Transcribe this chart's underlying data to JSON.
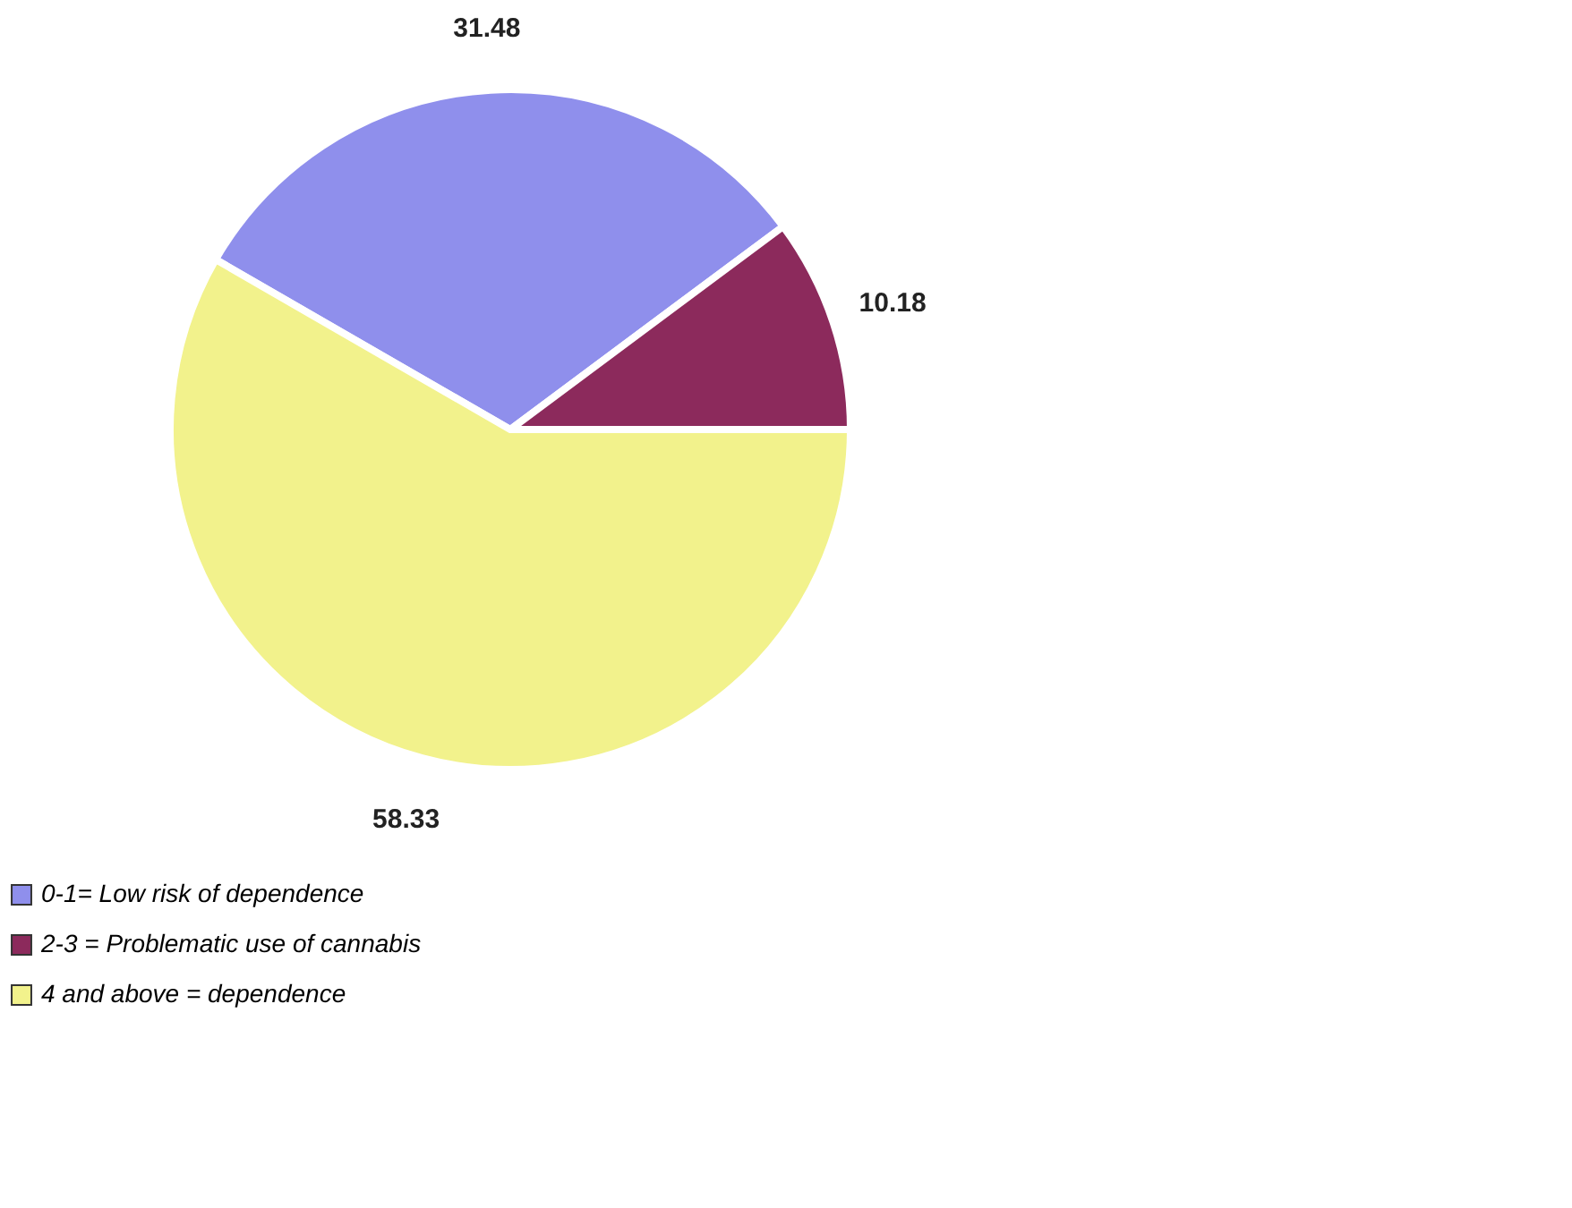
{
  "chart_data": {
    "type": "pie",
    "categories": [
      "0-1= Low risk of dependence",
      "2-3 = Problematic use of cannabis",
      "4 and above = dependence"
    ],
    "values": [
      31.48,
      10.18,
      58.33
    ],
    "colors": [
      "#8f8fec",
      "#8c2a5c",
      "#f2f28c"
    ],
    "data_labels": true,
    "legend": "bottom left"
  }
}
